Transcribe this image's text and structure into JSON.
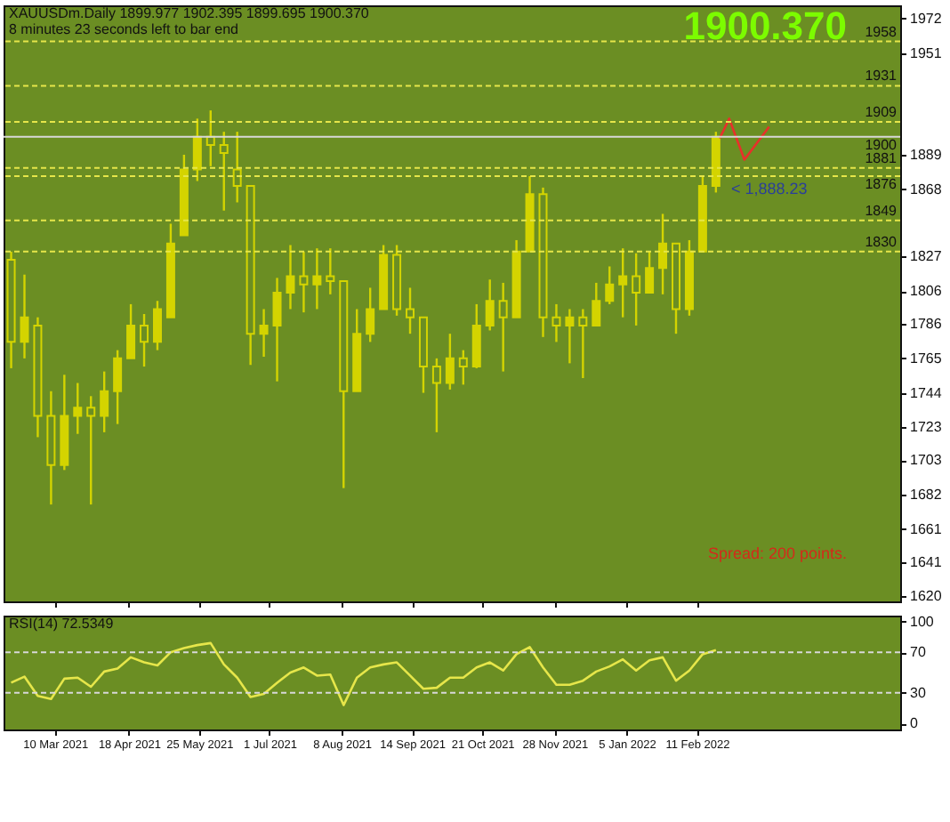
{
  "chart_data": [
    {
      "type": "candlestick",
      "title": "XAUUSDm.Daily  1899.977 1902.395 1899.695 1900.370",
      "subtitle": "8 minutes 23 seconds left to bar end",
      "color": "#d4d400",
      "x": [
        "2021-02-15",
        "2021-02-22",
        "2021-03-01",
        "2021-03-08",
        "2021-03-15",
        "2021-03-22",
        "2021-03-29",
        "2021-04-05",
        "2021-04-12",
        "2021-04-19",
        "2021-04-26",
        "2021-05-03",
        "2021-05-10",
        "2021-05-17",
        "2021-05-24",
        "2021-05-31",
        "2021-06-07",
        "2021-06-14",
        "2021-06-21",
        "2021-06-28",
        "2021-07-05",
        "2021-07-12",
        "2021-07-19",
        "2021-07-26",
        "2021-08-02",
        "2021-08-09",
        "2021-08-16",
        "2021-08-23",
        "2021-08-30",
        "2021-09-06",
        "2021-09-13",
        "2021-09-20",
        "2021-09-27",
        "2021-10-04",
        "2021-10-11",
        "2021-10-18",
        "2021-10-25",
        "2021-11-01",
        "2021-11-08",
        "2021-11-15",
        "2021-11-22",
        "2021-11-29",
        "2021-12-06",
        "2021-12-13",
        "2021-12-20",
        "2021-12-27",
        "2022-01-03",
        "2022-01-10",
        "2022-01-17",
        "2022-01-24",
        "2022-01-31",
        "2022-02-07",
        "2022-02-14",
        "2022-02-21"
      ],
      "ohlc": [
        [
          1825,
          1830,
          1759,
          1775
        ],
        [
          1775,
          1816,
          1765,
          1790
        ],
        [
          1785,
          1790,
          1717,
          1730
        ],
        [
          1730,
          1745,
          1676,
          1700
        ],
        [
          1700,
          1755,
          1697,
          1730
        ],
        [
          1730,
          1750,
          1719,
          1735
        ],
        [
          1735,
          1742,
          1676,
          1730
        ],
        [
          1730,
          1757,
          1720,
          1745
        ],
        [
          1745,
          1770,
          1725,
          1765
        ],
        [
          1765,
          1798,
          1765,
          1785
        ],
        [
          1785,
          1792,
          1760,
          1775
        ],
        [
          1775,
          1800,
          1770,
          1795
        ],
        [
          1790,
          1847,
          1790,
          1835
        ],
        [
          1840,
          1889,
          1840,
          1880
        ],
        [
          1880,
          1911,
          1873,
          1900
        ],
        [
          1900,
          1916,
          1882,
          1895
        ],
        [
          1895,
          1903,
          1855,
          1890
        ],
        [
          1880,
          1903,
          1860,
          1870
        ],
        [
          1870,
          1870,
          1761,
          1780
        ],
        [
          1780,
          1795,
          1766,
          1785
        ],
        [
          1785,
          1814,
          1751,
          1805
        ],
        [
          1805,
          1834,
          1795,
          1815
        ],
        [
          1815,
          1830,
          1793,
          1810
        ],
        [
          1810,
          1832,
          1795,
          1815
        ],
        [
          1815,
          1832,
          1804,
          1812
        ],
        [
          1812,
          1812,
          1686,
          1745
        ],
        [
          1745,
          1795,
          1745,
          1780
        ],
        [
          1780,
          1808,
          1775,
          1795
        ],
        [
          1795,
          1834,
          1795,
          1828
        ],
        [
          1828,
          1834,
          1791,
          1795
        ],
        [
          1795,
          1808,
          1780,
          1790
        ],
        [
          1790,
          1790,
          1744,
          1760
        ],
        [
          1760,
          1765,
          1720,
          1750
        ],
        [
          1750,
          1780,
          1746,
          1765
        ],
        [
          1765,
          1770,
          1749,
          1760
        ],
        [
          1760,
          1798,
          1759,
          1785
        ],
        [
          1785,
          1813,
          1782,
          1800
        ],
        [
          1800,
          1811,
          1757,
          1790
        ],
        [
          1790,
          1837,
          1790,
          1830
        ],
        [
          1830,
          1876,
          1830,
          1865
        ],
        [
          1865,
          1869,
          1778,
          1790
        ],
        [
          1790,
          1798,
          1775,
          1785
        ],
        [
          1785,
          1795,
          1762,
          1790
        ],
        [
          1790,
          1795,
          1753,
          1785
        ],
        [
          1785,
          1811,
          1785,
          1800
        ],
        [
          1800,
          1821,
          1798,
          1810
        ],
        [
          1810,
          1832,
          1790,
          1815
        ],
        [
          1815,
          1829,
          1785,
          1805
        ],
        [
          1805,
          1830,
          1805,
          1820
        ],
        [
          1820,
          1853,
          1804,
          1835
        ],
        [
          1835,
          1835,
          1780,
          1795
        ],
        [
          1795,
          1837,
          1791,
          1830
        ],
        [
          1830,
          1876,
          1830,
          1870
        ],
        [
          1870,
          1903,
          1866,
          1900
        ]
      ],
      "series": [
        {
          "type": "line",
          "color": "#e8302a",
          "x": [
            "2022-02-23",
            "2022-02-28",
            "2022-03-08",
            "2022-03-21"
          ],
          "values": [
            1899,
            1911,
            1886,
            1906
          ]
        }
      ],
      "xlim": [
        "2021-02-11",
        "2022-05-29"
      ],
      "ylim": [
        1617,
        1980
      ],
      "yticks": [
        1972,
        1951,
        1889,
        1868,
        1827,
        1806,
        1786,
        1765,
        1744,
        1723,
        1703,
        1682,
        1661,
        1641,
        1620
      ],
      "tick_labels": "y",
      "xticks": [
        {
          "value": "2021-03-10",
          "label": null
        },
        {
          "value": "2021-04-18",
          "label": null
        },
        {
          "value": "2021-05-25",
          "label": null
        },
        {
          "value": "2021-07-01",
          "label": null
        },
        {
          "value": "2021-08-08",
          "label": null
        },
        {
          "value": "2021-09-14",
          "label": null
        },
        {
          "value": "2021-10-21",
          "label": null
        },
        {
          "value": "2021-11-28",
          "label": null
        },
        {
          "value": "2022-01-05",
          "label": null
        },
        {
          "value": "2022-02-11",
          "label": null
        }
      ],
      "ref_lines": [
        {
          "axis": "y",
          "value": 1958,
          "label": "1958",
          "color": "#e6e64a",
          "line_style": "dashed"
        },
        {
          "axis": "y",
          "value": 1931,
          "label": "1931",
          "color": "#e6e64a",
          "line_style": "dashed"
        },
        {
          "axis": "y",
          "value": 1909,
          "label": "1909",
          "color": "#e6e64a",
          "line_style": "dashed"
        },
        {
          "axis": "y",
          "value": 1900,
          "label": "1900",
          "color": "#d8d8d8",
          "line_style": "solid"
        },
        {
          "axis": "y",
          "value": 1881,
          "label": "1881",
          "color": "#e6e64a",
          "line_style": "dashed"
        },
        {
          "axis": "y",
          "value": 1876,
          "label": "1876",
          "color": "#e6e64a",
          "line_style": "dashed"
        },
        {
          "axis": "y",
          "value": 1849,
          "label": "1849",
          "color": "#e6e64a",
          "line_style": "dashed"
        },
        {
          "axis": "y",
          "value": 1830,
          "label": "1830",
          "color": "#e6e64a",
          "line_style": "dashed"
        }
      ],
      "annotations": [
        "1900.370",
        "Spread: 200 points.",
        "< 1,888.23"
      ]
    },
    {
      "type": "line",
      "title": "RSI(14) 72.5349",
      "x": [
        "2021-02-15",
        "2021-02-22",
        "2021-03-01",
        "2021-03-08",
        "2021-03-15",
        "2021-03-22",
        "2021-03-29",
        "2021-04-05",
        "2021-04-12",
        "2021-04-19",
        "2021-04-26",
        "2021-05-03",
        "2021-05-10",
        "2021-05-17",
        "2021-05-24",
        "2021-05-31",
        "2021-06-07",
        "2021-06-14",
        "2021-06-21",
        "2021-06-28",
        "2021-07-05",
        "2021-07-12",
        "2021-07-19",
        "2021-07-26",
        "2021-08-02",
        "2021-08-09",
        "2021-08-16",
        "2021-08-23",
        "2021-08-30",
        "2021-09-06",
        "2021-09-13",
        "2021-09-20",
        "2021-09-27",
        "2021-10-04",
        "2021-10-11",
        "2021-10-18",
        "2021-10-25",
        "2021-11-01",
        "2021-11-08",
        "2021-11-15",
        "2021-11-22",
        "2021-11-29",
        "2021-12-06",
        "2021-12-13",
        "2021-12-20",
        "2021-12-27",
        "2022-01-03",
        "2022-01-10",
        "2022-01-17",
        "2022-01-24",
        "2022-01-31",
        "2022-02-07",
        "2022-02-14",
        "2022-02-21"
      ],
      "series": [
        {
          "color": "#e6e64a",
          "values": [
            40,
            46,
            27,
            24,
            44,
            45,
            36,
            51,
            54,
            65,
            60,
            57,
            70,
            74,
            77,
            79,
            58,
            45,
            26,
            29,
            40,
            50,
            55,
            47,
            48,
            18,
            45,
            55,
            58,
            60,
            47,
            34,
            35,
            45,
            45,
            55,
            60,
            52,
            68,
            75,
            55,
            38,
            38,
            42,
            51,
            56,
            63,
            52,
            62,
            65,
            42,
            52,
            68,
            72
          ]
        }
      ],
      "xlim": [
        "2021-02-11",
        "2022-05-29"
      ],
      "ylim": [
        -6,
        106
      ],
      "yticks": [
        0,
        30,
        70,
        100
      ],
      "xticks": [
        {
          "value": "2021-03-10",
          "label": "10 Mar 2021"
        },
        {
          "value": "2021-04-18",
          "label": "18 Apr 2021"
        },
        {
          "value": "2021-05-25",
          "label": "25 May 2021"
        },
        {
          "value": "2021-07-01",
          "label": "1 Jul 2021"
        },
        {
          "value": "2021-08-08",
          "label": "8 Aug 2021"
        },
        {
          "value": "2021-09-14",
          "label": "14 Sep 2021"
        },
        {
          "value": "2021-10-21",
          "label": "21 Oct 2021"
        },
        {
          "value": "2021-11-28",
          "label": "28 Nov 2021"
        },
        {
          "value": "2022-01-05",
          "label": "5 Jan 2022"
        },
        {
          "value": "2022-02-11",
          "label": "11 Feb 2022"
        }
      ],
      "ref_lines": [
        {
          "axis": "y",
          "value": 70,
          "color": "#d8d8d8",
          "line_style": "dashed"
        },
        {
          "axis": "y",
          "value": 30,
          "color": "#d8d8d8",
          "line_style": "dashed"
        }
      ]
    }
  ]
}
